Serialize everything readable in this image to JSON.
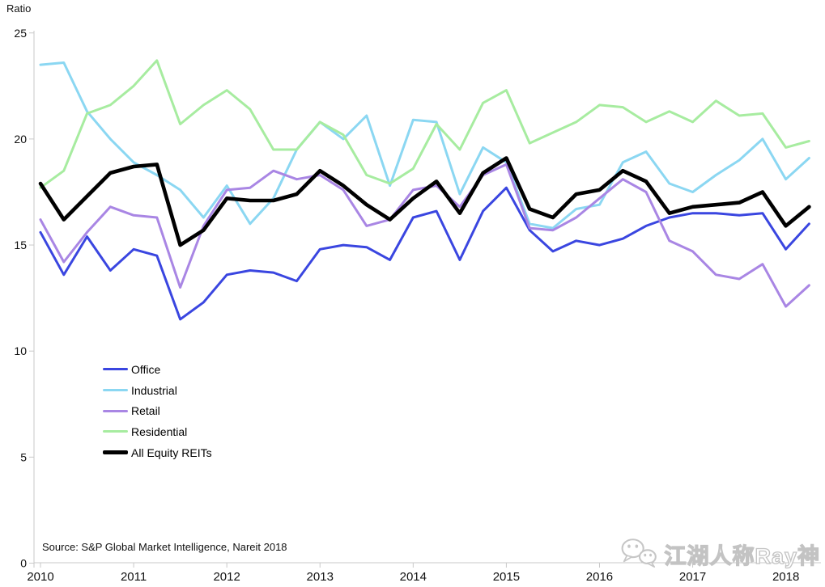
{
  "chart_data": {
    "type": "line",
    "title": "",
    "ylabel": "Ratio",
    "xlabel": "",
    "grid": false,
    "legend_position": "inside-left",
    "ylim": [
      0,
      25
    ],
    "y_ticks": [
      0,
      5,
      10,
      15,
      20,
      25
    ],
    "x_tick_labels": [
      "2010",
      "2011",
      "2012",
      "2013",
      "2014",
      "2015",
      "2016",
      "2017",
      "2018"
    ],
    "x_frequency": "quarterly",
    "x_start": "2010 Q1",
    "x_end": "2018 Q2",
    "series": [
      {
        "name": "Office",
        "color": "#3A46E0",
        "line_width": 3,
        "values": [
          15.6,
          13.6,
          15.4,
          13.8,
          14.8,
          14.5,
          11.5,
          12.3,
          13.6,
          13.8,
          13.7,
          13.3,
          14.8,
          15.0,
          14.9,
          14.3,
          16.3,
          16.6,
          14.3,
          16.6,
          17.7,
          15.7,
          14.7,
          15.2,
          15.0,
          15.3,
          15.9,
          16.3,
          16.5,
          16.5,
          16.4,
          16.5,
          14.8,
          16.0
        ]
      },
      {
        "name": "Industrial",
        "color": "#8BD7F2",
        "line_width": 3,
        "values": [
          23.5,
          23.6,
          21.3,
          20.0,
          18.9,
          18.3,
          17.6,
          16.3,
          17.8,
          16.0,
          17.2,
          19.5,
          20.8,
          20.0,
          21.1,
          17.8,
          20.9,
          20.8,
          17.4,
          19.6,
          18.9,
          16.0,
          15.8,
          16.7,
          16.9,
          18.9,
          19.4,
          17.9,
          17.5,
          18.3,
          19.0,
          20.0,
          18.1,
          19.1
        ]
      },
      {
        "name": "Retail",
        "color": "#A986E4",
        "line_width": 3,
        "values": [
          16.2,
          14.2,
          15.6,
          16.8,
          16.4,
          16.3,
          13.0,
          15.9,
          17.6,
          17.7,
          18.5,
          18.1,
          18.3,
          17.6,
          15.9,
          16.2,
          17.6,
          17.8,
          16.8,
          18.3,
          18.8,
          15.8,
          15.7,
          16.3,
          17.2,
          18.1,
          17.5,
          15.2,
          14.7,
          13.6,
          13.4,
          14.1,
          12.1,
          13.1
        ]
      },
      {
        "name": "Residential",
        "color": "#A7ECA0",
        "line_width": 3,
        "values": [
          17.7,
          18.5,
          21.2,
          21.6,
          22.5,
          23.7,
          20.7,
          21.6,
          22.3,
          21.4,
          19.5,
          19.5,
          20.8,
          20.2,
          18.3,
          17.9,
          18.6,
          20.7,
          19.5,
          21.7,
          22.3,
          19.8,
          20.3,
          20.8,
          21.6,
          21.5,
          20.8,
          21.3,
          20.8,
          21.8,
          21.1,
          21.2,
          19.6,
          19.9
        ]
      },
      {
        "name": "All Equity REITs",
        "color": "#000000",
        "line_width": 4.6,
        "values": [
          17.9,
          16.2,
          17.3,
          18.4,
          18.7,
          18.8,
          15.0,
          15.7,
          17.2,
          17.1,
          17.1,
          17.4,
          18.5,
          17.8,
          16.9,
          16.2,
          17.2,
          18.0,
          16.5,
          18.4,
          19.1,
          16.7,
          16.3,
          17.4,
          17.6,
          18.5,
          18.0,
          16.5,
          16.8,
          16.9,
          17.0,
          17.5,
          15.9,
          16.8
        ]
      }
    ]
  },
  "source": "Source: S&P Global Market Intelligence, Nareit 2018",
  "watermark": {
    "text": "江湖人称Ray神",
    "icon": "wechat-icon"
  }
}
